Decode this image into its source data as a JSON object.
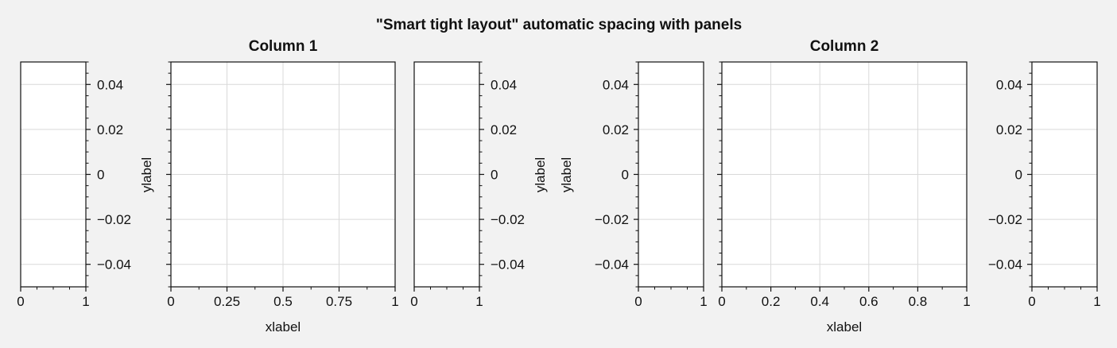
{
  "figure": {
    "suptitle": "\"Smart tight layout\" automatic spacing with panels",
    "background": "#f2f2f2",
    "axes_face": "#ffffff",
    "grid_color": "#d9d9d9",
    "ink": "#111111"
  },
  "chart_data": [
    {
      "type": "line",
      "role": "left-panel",
      "series": [],
      "xlim": [
        0,
        1
      ],
      "ylim": [
        -0.05,
        0.05
      ],
      "x_ticks": [
        0,
        1
      ],
      "x_tick_labels": [
        "0",
        "1"
      ],
      "y_ticks": [
        0.04,
        0.02,
        0,
        -0.02,
        -0.04
      ],
      "y_tick_labels": [
        "0.04",
        "0.02",
        "0",
        "−0.02",
        "−0.04"
      ],
      "y_axis_side": "right",
      "grid": true
    },
    {
      "type": "line",
      "role": "main",
      "title": "Column 1",
      "xlabel": "xlabel",
      "ylabel": "ylabel",
      "series": [],
      "xlim": [
        0,
        1
      ],
      "ylim": [
        -0.05,
        0.05
      ],
      "x_ticks": [
        0,
        0.25,
        0.5,
        0.75,
        1
      ],
      "x_tick_labels": [
        "0",
        "0.25",
        "0.5",
        "0.75",
        "1"
      ],
      "y_ticks": [
        0.04,
        0.02,
        0,
        -0.02,
        -0.04
      ],
      "y_tick_labels": [],
      "y_axis_side": "left",
      "grid": true
    },
    {
      "type": "line",
      "role": "right-panel",
      "series": [],
      "ylabel": "ylabel",
      "xlim": [
        0,
        1
      ],
      "ylim": [
        -0.05,
        0.05
      ],
      "x_ticks": [
        0,
        1
      ],
      "x_tick_labels": [
        "0",
        "1"
      ],
      "y_ticks": [
        0.04,
        0.02,
        0,
        -0.02,
        -0.04
      ],
      "y_tick_labels": [
        "0.04",
        "0.02",
        "0",
        "−0.02",
        "−0.04"
      ],
      "y_axis_side": "right",
      "grid": true
    },
    {
      "type": "line",
      "role": "left-panel",
      "series": [],
      "ylabel": "ylabel",
      "xlim": [
        0,
        1
      ],
      "ylim": [
        -0.05,
        0.05
      ],
      "x_ticks": [
        0,
        1
      ],
      "x_tick_labels": [
        "0",
        "1"
      ],
      "y_ticks": [
        0.04,
        0.02,
        0,
        -0.02,
        -0.04
      ],
      "y_tick_labels": [
        "0.04",
        "0.02",
        "0",
        "−0.02",
        "−0.04"
      ],
      "y_axis_side": "left",
      "grid": true
    },
    {
      "type": "line",
      "role": "main",
      "title": "Column 2",
      "xlabel": "xlabel",
      "series": [],
      "xlim": [
        0,
        1
      ],
      "ylim": [
        -0.05,
        0.05
      ],
      "x_ticks": [
        0,
        0.2,
        0.4,
        0.6,
        0.8,
        1
      ],
      "x_tick_labels": [
        "0",
        "0.2",
        "0.4",
        "0.6",
        "0.8",
        "1"
      ],
      "y_ticks": [
        0.04,
        0.02,
        0,
        -0.02,
        -0.04
      ],
      "y_tick_labels": [],
      "y_axis_side": "left",
      "grid": true
    },
    {
      "type": "line",
      "role": "right-panel",
      "series": [],
      "xlim": [
        0,
        1
      ],
      "ylim": [
        -0.05,
        0.05
      ],
      "x_ticks": [
        0,
        1
      ],
      "x_tick_labels": [
        "0",
        "1"
      ],
      "y_ticks": [
        0.04,
        0.02,
        0,
        -0.02,
        -0.04
      ],
      "y_tick_labels": [
        "0.04",
        "0.02",
        "0",
        "−0.02",
        "−0.04"
      ],
      "y_axis_side": "left",
      "grid": true
    }
  ]
}
